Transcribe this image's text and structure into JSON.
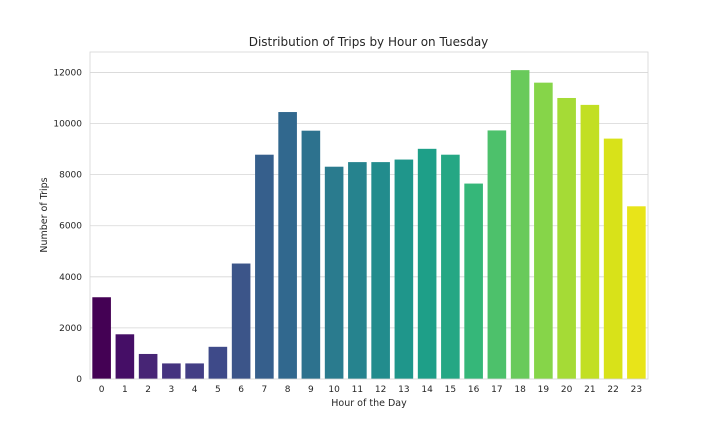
{
  "chart_data": {
    "type": "bar",
    "title": "Distribution of Trips by Hour on Tuesday",
    "xlabel": "Hour of the Day",
    "ylabel": "Number of Trips",
    "categories": [
      "0",
      "1",
      "2",
      "3",
      "4",
      "5",
      "6",
      "7",
      "8",
      "9",
      "10",
      "11",
      "12",
      "13",
      "14",
      "15",
      "16",
      "17",
      "18",
      "19",
      "20",
      "21",
      "22",
      "23"
    ],
    "values": [
      3200,
      1750,
      980,
      610,
      610,
      1260,
      4520,
      8780,
      10450,
      9720,
      8310,
      8490,
      8490,
      8590,
      9010,
      8780,
      7650,
      9730,
      12090,
      11600,
      11000,
      10730,
      9410,
      6760
    ],
    "ylim": [
      0,
      12800
    ],
    "yticks": [
      0,
      2000,
      4000,
      6000,
      8000,
      10000,
      12000
    ],
    "grid": true,
    "colormap": "viridis",
    "colors": [
      "#440154",
      "#450e66",
      "#472575",
      "#45337f",
      "#433e85",
      "#3e4a89",
      "#3c5589",
      "#365f8c",
      "#31688e",
      "#2d728e",
      "#2a7b8e",
      "#26838e",
      "#228c8d",
      "#1f968b",
      "#1e9f88",
      "#25a784",
      "#35b779",
      "#4dc16b",
      "#69ca5b",
      "#86d549",
      "#a5db36",
      "#c2df23",
      "#d8e219",
      "#e8e419"
    ]
  }
}
